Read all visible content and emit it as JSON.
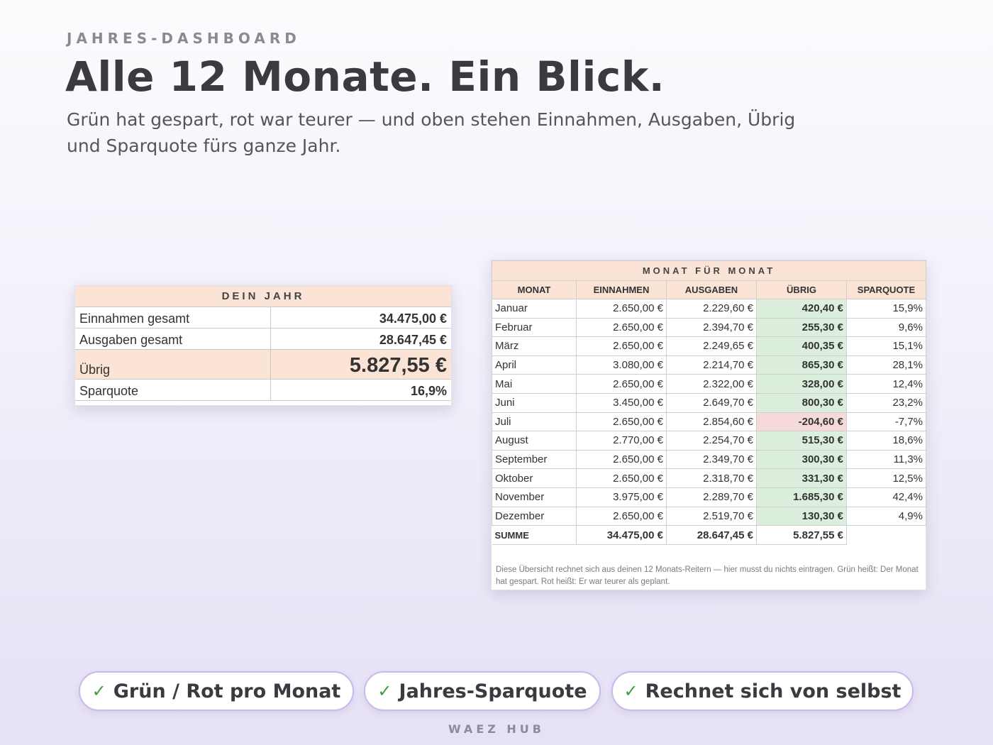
{
  "header": {
    "kicker": "JAHRES-DASHBOARD",
    "title": "Alle 12 Monate. Ein Blick.",
    "subtitle": "Grün hat gespart, rot war teurer — und oben stehen Einnahmen, Ausgaben, Übrig und Sparquote fürs ganze Jahr."
  },
  "summary": {
    "title": "DEIN JAHR",
    "rows": [
      {
        "label": "Einnahmen gesamt",
        "value": "34.475,00 €"
      },
      {
        "label": "Ausgaben gesamt",
        "value": "28.647,45 €"
      },
      {
        "label": "Übrig",
        "value": "5.827,55 €"
      },
      {
        "label": "Sparquote",
        "value": "16,9%"
      }
    ]
  },
  "monthly": {
    "title": "MONAT FÜR MONAT",
    "columns": [
      "MONAT",
      "EINNAHMEN",
      "AUSGABEN",
      "ÜBRIG",
      "SPARQUOTE"
    ],
    "rows": [
      {
        "month": "Januar",
        "income": "2.650,00 €",
        "expenses": "2.229,60 €",
        "left": "420,40 €",
        "rate": "15,9%",
        "status": "positive"
      },
      {
        "month": "Februar",
        "income": "2.650,00 €",
        "expenses": "2.394,70 €",
        "left": "255,30 €",
        "rate": "9,6%",
        "status": "positive"
      },
      {
        "month": "März",
        "income": "2.650,00 €",
        "expenses": "2.249,65 €",
        "left": "400,35 €",
        "rate": "15,1%",
        "status": "positive"
      },
      {
        "month": "April",
        "income": "3.080,00 €",
        "expenses": "2.214,70 €",
        "left": "865,30 €",
        "rate": "28,1%",
        "status": "positive"
      },
      {
        "month": "Mai",
        "income": "2.650,00 €",
        "expenses": "2.322,00 €",
        "left": "328,00 €",
        "rate": "12,4%",
        "status": "positive"
      },
      {
        "month": "Juni",
        "income": "3.450,00 €",
        "expenses": "2.649,70 €",
        "left": "800,30 €",
        "rate": "23,2%",
        "status": "positive"
      },
      {
        "month": "Juli",
        "income": "2.650,00 €",
        "expenses": "2.854,60 €",
        "left": "-204,60 €",
        "rate": "-7,7%",
        "status": "negative"
      },
      {
        "month": "August",
        "income": "2.770,00 €",
        "expenses": "2.254,70 €",
        "left": "515,30 €",
        "rate": "18,6%",
        "status": "positive"
      },
      {
        "month": "September",
        "income": "2.650,00 €",
        "expenses": "2.349,70 €",
        "left": "300,30 €",
        "rate": "11,3%",
        "status": "positive"
      },
      {
        "month": "Oktober",
        "income": "2.650,00 €",
        "expenses": "2.318,70 €",
        "left": "331,30 €",
        "rate": "12,5%",
        "status": "positive"
      },
      {
        "month": "November",
        "income": "3.975,00 €",
        "expenses": "2.289,70 €",
        "left": "1.685,30 €",
        "rate": "42,4%",
        "status": "positive"
      },
      {
        "month": "Dezember",
        "income": "2.650,00 €",
        "expenses": "2.519,70 €",
        "left": "130,30 €",
        "rate": "4,9%",
        "status": "positive"
      }
    ],
    "total": {
      "label": "SUMME",
      "income": "34.475,00 €",
      "expenses": "28.647,45 €",
      "left": "5.827,55 €"
    },
    "note": "Diese Übersicht rechnet sich aus deinen 12 Monats-Reitern — hier musst du nichts eintragen. Grün heißt: Der Monat hat gespart. Rot heißt: Er war teurer als geplant."
  },
  "features": [
    {
      "check": "✓",
      "label": "Grün / Rot pro Monat"
    },
    {
      "check": "✓",
      "label": "Jahres-Sparquote"
    },
    {
      "check": "✓",
      "label": "Rechnet sich von selbst"
    }
  ],
  "footer": "WAEZ HUB",
  "colors": {
    "header_fill": "#fbe3d6",
    "positive_fill": "#dbefdc",
    "negative_fill": "#f6d9d9",
    "check": "#3f9d45",
    "pill_border": "#c9b9ec"
  }
}
